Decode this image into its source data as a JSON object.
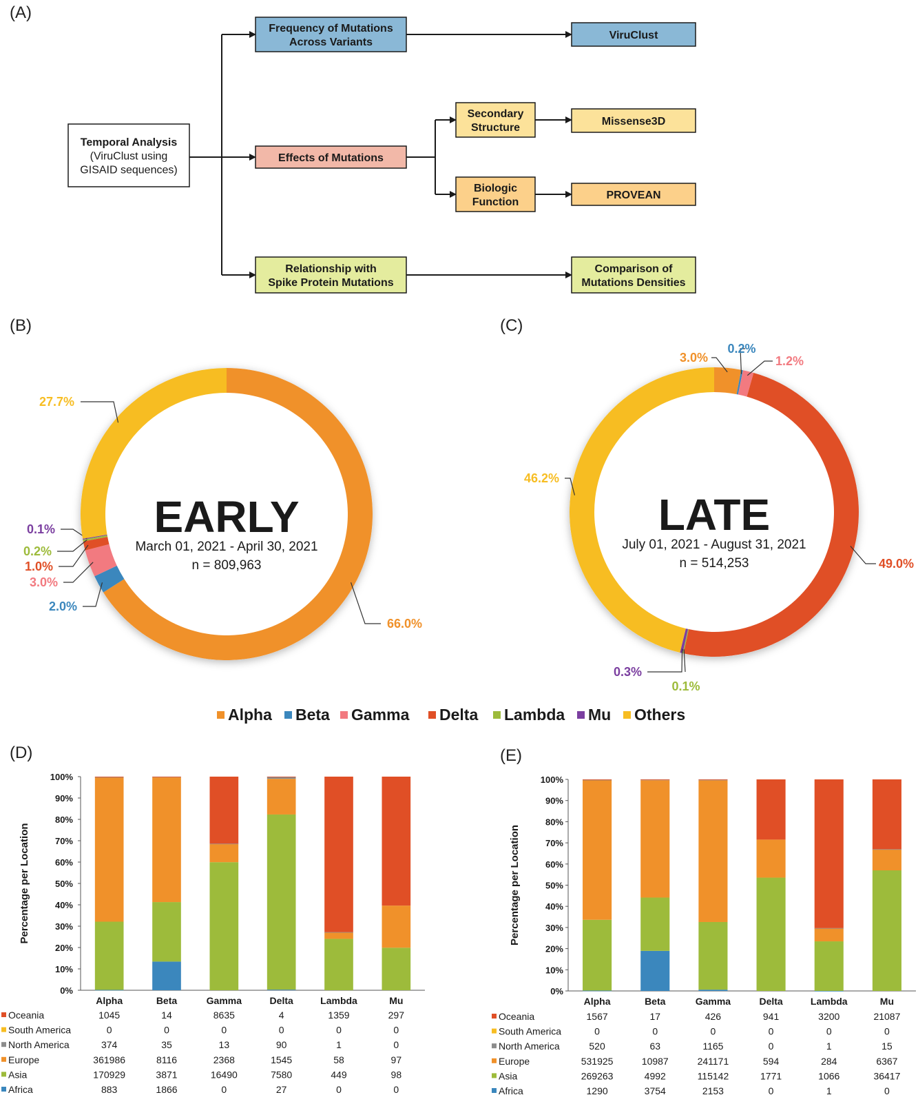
{
  "panels": {
    "a": "(A)",
    "b": "(B)",
    "c": "(C)",
    "d": "(D)",
    "e": "(E)"
  },
  "flowchart": {
    "root": [
      "Temporal Analysis",
      "(ViruClust using",
      "GISAID sequences)"
    ],
    "freq": [
      "Frequency of Mutations",
      "Across Variants"
    ],
    "viruclust": [
      "ViruClust"
    ],
    "effects": [
      "Effects of Mutations"
    ],
    "secondary": [
      "Secondary",
      "Structure"
    ],
    "missense": [
      "Missense3D"
    ],
    "biologic": [
      "Biologic",
      "Function"
    ],
    "provean": [
      "PROVEAN"
    ],
    "relationship": [
      "Relationship with",
      "Spike Protein Mutations"
    ],
    "comparison": [
      "Comparison of",
      "Mutations Densities"
    ],
    "colors": {
      "blue": "#8ab8d6",
      "pink": "#f2b8a8",
      "yellow": "#fce29a",
      "orange": "#fcd08a",
      "green": "#e4ec9e"
    }
  },
  "variant_colors": {
    "Alpha": "#f0912a",
    "Beta": "#3b87bd",
    "Gamma": "#f27a80",
    "Delta": "#e04f26",
    "Lambda": "#9dbb3b",
    "Mu": "#7b3fa0",
    "Others": "#f7bd22"
  },
  "legend": [
    "Alpha",
    "Beta",
    "Gamma",
    "Delta",
    "Lambda",
    "Mu",
    "Others"
  ],
  "chart_data": [
    {
      "type": "pie",
      "panel": "B",
      "center_title": "EARLY",
      "date_range": "March 01, 2021 - April 30, 2021",
      "n_label": "n = 809,963",
      "slices": [
        {
          "name": "Alpha",
          "value": 66.0,
          "label": "66.0%"
        },
        {
          "name": "Beta",
          "value": 2.0,
          "label": "2.0%"
        },
        {
          "name": "Gamma",
          "value": 3.0,
          "label": "3.0%"
        },
        {
          "name": "Delta",
          "value": 1.0,
          "label": "1.0%"
        },
        {
          "name": "Lambda",
          "value": 0.2,
          "label": "0.2%"
        },
        {
          "name": "Mu",
          "value": 0.1,
          "label": "0.1%"
        },
        {
          "name": "Others",
          "value": 27.7,
          "label": "27.7%"
        }
      ]
    },
    {
      "type": "pie",
      "panel": "C",
      "center_title": "LATE",
      "date_range": "July 01, 2021 - August 31, 2021",
      "n_label": "n = 514,253",
      "slices": [
        {
          "name": "Alpha",
          "value": 3.0,
          "label": "3.0%"
        },
        {
          "name": "Beta",
          "value": 0.2,
          "label": "0.2%"
        },
        {
          "name": "Gamma",
          "value": 1.2,
          "label": "1.2%"
        },
        {
          "name": "Delta",
          "value": 49.0,
          "label": "49.0%"
        },
        {
          "name": "Lambda",
          "value": 0.1,
          "label": "0.1%"
        },
        {
          "name": "Mu",
          "value": 0.3,
          "label": "0.3%"
        },
        {
          "name": "Others",
          "value": 46.2,
          "label": "46.2%"
        }
      ]
    },
    {
      "type": "bar",
      "stacked": "percent",
      "panel": "D",
      "ylabel": "Percentage per Location",
      "yticks": [
        "0%",
        "10%",
        "20%",
        "30%",
        "40%",
        "50%",
        "60%",
        "70%",
        "80%",
        "90%",
        "100%"
      ],
      "categories": [
        "Alpha",
        "Beta",
        "Gamma",
        "Delta",
        "Lambda",
        "Mu"
      ],
      "series": [
        {
          "name": "Oceania",
          "color": "#e04f26",
          "values": [
            "1045",
            "14",
            "8635",
            "4",
            "1359",
            "297"
          ]
        },
        {
          "name": "South America",
          "color": "#f7bd22",
          "values": [
            "0",
            "0",
            "0",
            "0",
            "0",
            "0"
          ]
        },
        {
          "name": "North America",
          "color": "#8c8c8c",
          "values": [
            "374",
            "35",
            "13",
            "90",
            "1",
            "0"
          ]
        },
        {
          "name": "Europe",
          "color": "#f0912a",
          "values": [
            "361986",
            "8116",
            "2368",
            "1545",
            "58",
            "97"
          ]
        },
        {
          "name": "Asia",
          "color": "#9dbb3b",
          "values": [
            "170929",
            "3871",
            "16490",
            "7580",
            "449",
            "98"
          ]
        },
        {
          "name": "Africa",
          "color": "#3b87bd",
          "values": [
            "883",
            "1866",
            "0",
            "27",
            "0",
            "0"
          ]
        }
      ]
    },
    {
      "type": "bar",
      "stacked": "percent",
      "panel": "E",
      "ylabel": "Percentage per Location",
      "yticks": [
        "0%",
        "10%",
        "20%",
        "30%",
        "40%",
        "50%",
        "60%",
        "70%",
        "80%",
        "90%",
        "100%"
      ],
      "categories": [
        "Alpha",
        "Beta",
        "Gamma",
        "Delta",
        "Lambda",
        "Mu"
      ],
      "series": [
        {
          "name": "Oceania",
          "color": "#e04f26",
          "values": [
            "1567",
            "17",
            "426",
            "941",
            "3200",
            "21087"
          ]
        },
        {
          "name": "South America",
          "color": "#f7bd22",
          "values": [
            "0",
            "0",
            "0",
            "0",
            "0",
            "0"
          ]
        },
        {
          "name": "North America",
          "color": "#8c8c8c",
          "values": [
            "520",
            "63",
            "1165",
            "0",
            "1",
            "15"
          ]
        },
        {
          "name": "Europe",
          "color": "#f0912a",
          "values": [
            "531925",
            "10987",
            "241171",
            "594",
            "284",
            "6367"
          ]
        },
        {
          "name": "Asia",
          "color": "#9dbb3b",
          "values": [
            "269263",
            "4992",
            "115142",
            "1771",
            "1066",
            "36417"
          ]
        },
        {
          "name": "Africa",
          "color": "#3b87bd",
          "values": [
            "1290",
            "3754",
            "2153",
            "0",
            "1",
            "0"
          ]
        }
      ]
    }
  ]
}
